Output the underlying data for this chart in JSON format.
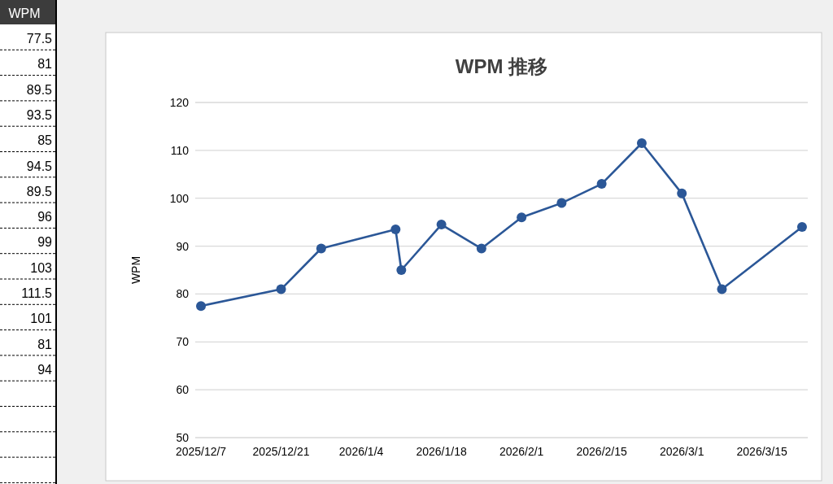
{
  "chart_data": [
    {
      "type": "other",
      "title": "WPM",
      "annotations": [
        "77.5",
        "81",
        "89.5",
        "93.5",
        "85",
        "94.5",
        "89.5",
        "96",
        "99",
        "103",
        "111.5",
        "101",
        "81",
        "94"
      ]
    },
    {
      "type": "line",
      "title": "WPM 推移",
      "ylabel": "WPM",
      "x": [
        "2025-12-07",
        "2025-12-21",
        "2025-12-28",
        "2026-01-10",
        "2026-01-11",
        "2026-01-18",
        "2026-01-25",
        "2026-02-01",
        "2026-02-08",
        "2026-02-15",
        "2026-02-22",
        "2026-03-01",
        "2026-03-08",
        "2026-03-22"
      ],
      "series": [
        {
          "color": "#2b5797",
          "values": [
            77.5,
            81,
            89.5,
            93.5,
            85,
            94.5,
            89.5,
            96,
            99,
            103,
            111.5,
            101,
            81,
            94
          ]
        }
      ],
      "xlim": [
        "2025-12-06",
        "2026-03-23"
      ],
      "xticks": [
        {
          "value": "2025-12-07",
          "label": "2025/12/7"
        },
        {
          "value": "2025-12-21",
          "label": "2025/12/21"
        },
        {
          "value": "2026-01-04",
          "label": "2026/1/4"
        },
        {
          "value": "2026-01-18",
          "label": "2026/1/18"
        },
        {
          "value": "2026-02-01",
          "label": "2026/2/1"
        },
        {
          "value": "2026-02-15",
          "label": "2026/2/15"
        },
        {
          "value": "2026-03-01",
          "label": "2026/3/1"
        },
        {
          "value": "2026-03-15",
          "label": "2026/3/15"
        }
      ],
      "ylim": [
        50,
        120
      ],
      "yticks": [
        50,
        60,
        70,
        80,
        90,
        100,
        110,
        120
      ],
      "grid": "y",
      "marker": "circle",
      "line_style": "solid"
    }
  ]
}
